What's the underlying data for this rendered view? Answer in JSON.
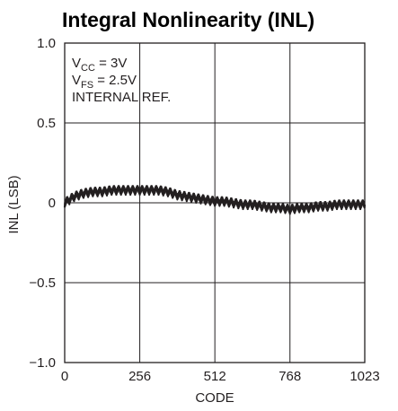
{
  "chart_data": {
    "type": "line",
    "title": "Integral Nonlinearity (INL)",
    "xlabel": "CODE",
    "ylabel": "INL (LSB)",
    "xlim": [
      0,
      1023
    ],
    "ylim": [
      -1.0,
      1.0
    ],
    "xticks": [
      0,
      256,
      512,
      768,
      1023
    ],
    "xtick_labels": [
      "0",
      "256",
      "512",
      "768",
      "1023"
    ],
    "yticks": [
      1.0,
      0.5,
      0,
      -0.5,
      -1.0
    ],
    "ytick_labels": [
      "1.0",
      "0.5",
      "0",
      "−0.5",
      "−1.0"
    ],
    "grid": true,
    "annotations": [
      {
        "main": "V",
        "sub": "CC",
        "rest": " = 3V"
      },
      {
        "main": "V",
        "sub": "FS",
        "rest": " = 2.5V"
      },
      {
        "main": "INTERNAL REF.",
        "sub": "",
        "rest": ""
      }
    ],
    "series": [
      {
        "x": [
          0,
          32,
          64,
          96,
          128,
          160,
          192,
          224,
          256,
          288,
          320,
          352,
          384,
          416,
          448,
          480,
          512,
          544,
          576,
          608,
          640,
          672,
          704,
          736,
          768,
          800,
          832,
          864,
          896,
          928,
          960,
          992,
          1023
        ],
        "values": [
          0.0,
          0.04,
          0.06,
          0.07,
          0.07,
          0.08,
          0.08,
          0.08,
          0.08,
          0.08,
          0.08,
          0.07,
          0.05,
          0.04,
          0.03,
          0.02,
          0.01,
          0.01,
          0.0,
          -0.01,
          -0.01,
          -0.02,
          -0.03,
          -0.03,
          -0.04,
          -0.03,
          -0.03,
          -0.02,
          -0.02,
          -0.01,
          -0.01,
          -0.01,
          -0.01
        ],
        "ripple_amplitude": 0.035,
        "ripple_period_codes": 16
      }
    ]
  }
}
